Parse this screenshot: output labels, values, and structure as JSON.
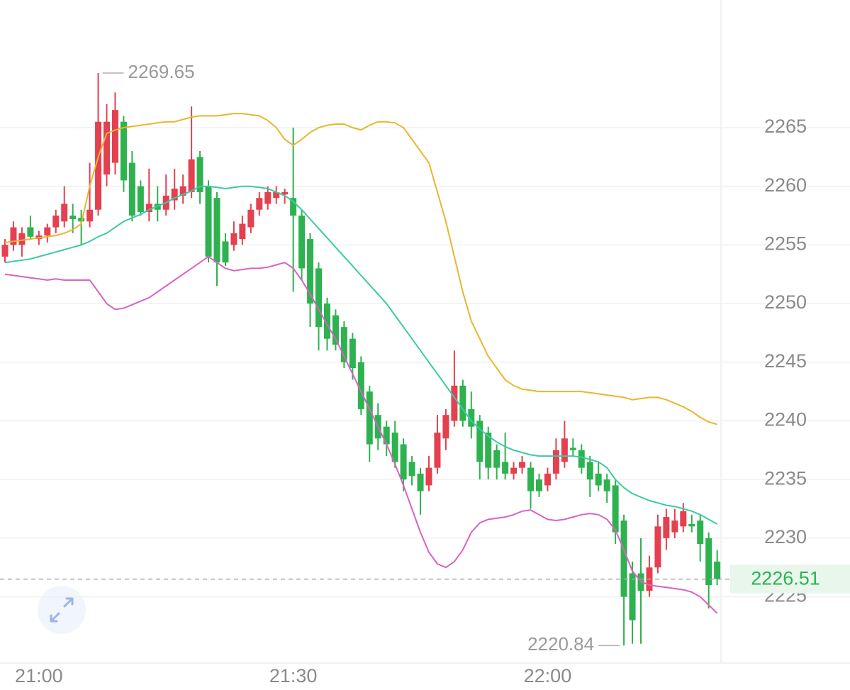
{
  "chart_data": {
    "type": "candlestick",
    "categories": [
      null,
      null,
      null,
      null,
      "21:00",
      null,
      null,
      null,
      null,
      null,
      null,
      null,
      null,
      null,
      null,
      null,
      null,
      null,
      null,
      null,
      null,
      null,
      null,
      null,
      null,
      null,
      null,
      null,
      null,
      null,
      null,
      null,
      null,
      null,
      "21:30",
      null,
      null,
      null,
      null,
      null,
      null,
      null,
      null,
      null,
      null,
      null,
      null,
      null,
      null,
      null,
      null,
      null,
      null,
      null,
      null,
      null,
      null,
      null,
      null,
      null,
      null,
      null,
      null,
      null,
      "22:00",
      null,
      null,
      null,
      null,
      null,
      null,
      null,
      null,
      null,
      null,
      null,
      null,
      null,
      null,
      null,
      null,
      null,
      null,
      null,
      null
    ],
    "open": [
      2254,
      2255,
      2255,
      2256.5,
      2255.5,
      2255.8,
      2256.5,
      2257,
      2257.5,
      2257.3,
      2257,
      2258,
      2261,
      2262,
      2265.5,
      2262,
      2260,
      2257.8,
      2258.5,
      2258,
      2258.8,
      2259.2,
      2259.5,
      2262.5,
      2260,
      2259,
      2255.3,
      2255,
      2255.5,
      2256.5,
      2258,
      2258.5,
      2259,
      2259.3,
      2259,
      2257.5,
      2255.5,
      2253,
      2250,
      2249,
      2248,
      2247,
      2245,
      2242.5,
      2240.5,
      2239.5,
      2239,
      2238,
      2236.5,
      2235.5,
      2234.5,
      2236,
      2238.5,
      2240,
      2243,
      2241,
      2240,
      2239,
      2237.5,
      2236.5,
      2235.5,
      2236,
      2236,
      2235,
      2234.5,
      2235.5,
      2236.5,
      2237.7,
      2237.5,
      2236.5,
      2235.5,
      2235,
      2234.5,
      2231.5,
      2227,
      2227,
      2225.5,
      2227.5,
      2230,
      2230.5,
      2231,
      2231.2,
      2231.5,
      2230,
      2228
    ],
    "high": [
      2255.5,
      2257,
      2256.5,
      2257.5,
      2256.2,
      2256.8,
      2258,
      2260,
      2258.5,
      2258,
      2262,
      2269.65,
      2267,
      2268,
      2266,
      2263,
      2260.5,
      2261.5,
      2260,
      2261,
      2261.5,
      2261,
      2266.8,
      2263,
      2260.5,
      2259.5,
      2256,
      2257,
      2257.5,
      2258.5,
      2259.5,
      2260,
      2260,
      2259.8,
      2265,
      2258,
      2256,
      2253.5,
      2250.5,
      2249.5,
      2248.5,
      2247.5,
      2245.5,
      2243,
      2241.5,
      2240,
      2240,
      2238.5,
      2237,
      2236,
      2237,
      2240.5,
      2241,
      2246,
      2243.5,
      2242.5,
      2240.5,
      2239.5,
      2238,
      2239,
      2236.5,
      2237,
      2236.5,
      2235.5,
      2236,
      2238.5,
      2240,
      2238.5,
      2238,
      2237,
      2236.5,
      2235.5,
      2235,
      2232,
      2228,
      2230,
      2228.5,
      2232,
      2232.5,
      2232.5,
      2233,
      2232,
      2232,
      2230.5,
      2229
    ],
    "low": [
      2253.5,
      2254.5,
      2254,
      2255.5,
      2255,
      2255.2,
      2256,
      2256.5,
      2256,
      2255,
      2256.5,
      2257.5,
      2260,
      2261,
      2259.5,
      2257,
      2257.5,
      2257,
      2257,
      2257.5,
      2258,
      2258.5,
      2259,
      2258.5,
      2253.5,
      2251.5,
      2253.2,
      2254.5,
      2255,
      2256,
      2257.5,
      2258,
      2258.5,
      2258.5,
      2251,
      2252,
      2248,
      2246,
      2246,
      2246,
      2244.5,
      2243.5,
      2240.5,
      2236.5,
      2237.5,
      2237,
      2236,
      2234,
      2234.5,
      2232,
      2234,
      2235.5,
      2237.5,
      2239.5,
      2239.5,
      2238.5,
      2235,
      2235,
      2235,
      2235,
      2235,
      2235.5,
      2232.5,
      2233.5,
      2234,
      2235,
      2236,
      2237,
      2235.5,
      2233.5,
      2234,
      2233,
      2229.5,
      2220.84,
      2221,
      2221,
      2225,
      2227,
      2229,
      2230,
      2230.5,
      2230.5,
      2228,
      2224,
      2226
    ],
    "close": [
      2255,
      2256.5,
      2256,
      2255.7,
      2255.8,
      2256.5,
      2257.5,
      2258.5,
      2257.2,
      2257,
      2258,
      2265.5,
      2265.5,
      2266.5,
      2260.5,
      2257.5,
      2257.8,
      2258.5,
      2258,
      2259.2,
      2259.8,
      2260,
      2262.3,
      2259.5,
      2254,
      2253.5,
      2253.5,
      2256,
      2256.8,
      2258,
      2259,
      2259.5,
      2259.5,
      2259.5,
      2257.5,
      2253,
      2250,
      2248,
      2247,
      2246.5,
      2245,
      2244.5,
      2241,
      2238,
      2238.5,
      2238,
      2236.5,
      2235,
      2235.3,
      2234,
      2236,
      2239,
      2240.5,
      2243,
      2240,
      2239.5,
      2236.5,
      2236,
      2236,
      2235.5,
      2236,
      2236.5,
      2234,
      2234,
      2235.5,
      2237.5,
      2238.5,
      2237.5,
      2236,
      2235,
      2234.5,
      2234,
      2230.5,
      2225,
      2223,
      2225.5,
      2227.5,
      2231,
      2231.8,
      2231.5,
      2232.3,
      2231,
      2229.5,
      2226,
      2226.51
    ],
    "up_color": "#e5404f",
    "down_color": "#2db24f",
    "series": [
      {
        "color": "#ebb52f",
        "values": [
          2255.2,
          2255.3,
          2255.4,
          2255.5,
          2255.6,
          2255.7,
          2255.8,
          2256,
          2256.3,
          2256.8,
          2260,
          2262.5,
          2264.5,
          2264.8,
          2265,
          2265.1,
          2265.2,
          2265.3,
          2265.4,
          2265.5,
          2265.5,
          2265.7,
          2265.9,
          2266,
          2266,
          2266,
          2266.1,
          2266.2,
          2266.2,
          2266.1,
          2266,
          2265.6,
          2265,
          2264,
          2263.5,
          2264,
          2264.6,
          2265,
          2265.2,
          2265.3,
          2265.3,
          2265,
          2264.8,
          2265.2,
          2265.5,
          2265.5,
          2265.4,
          2265,
          2264,
          2263,
          2262,
          2259.5,
          2257,
          2254,
          2251,
          2248.5,
          2247,
          2245.5,
          2244.5,
          2243.5,
          2243,
          2242.7,
          2242.6,
          2242.5,
          2242.5,
          2242.5,
          2242.5,
          2242.5,
          2242.5,
          2242.4,
          2242.3,
          2242.2,
          2242.1,
          2242,
          2241.8,
          2241.9,
          2242,
          2242,
          2241.8,
          2241.5,
          2241.2,
          2240.8,
          2240.3,
          2239.9,
          2239.7
        ]
      },
      {
        "color": "#3ccaa5",
        "values": [
          2253.5,
          2253.6,
          2253.7,
          2253.8,
          2254,
          2254.2,
          2254.4,
          2254.6,
          2254.8,
          2255,
          2255.3,
          2255.7,
          2256,
          2256.5,
          2257,
          2257.3,
          2257.6,
          2258,
          2258.3,
          2258.6,
          2259,
          2259.3,
          2259.6,
          2260,
          2260,
          2259.9,
          2259.8,
          2259.9,
          2260,
          2260,
          2259.9,
          2259.8,
          2259.5,
          2259.2,
          2258.7,
          2258,
          2257.2,
          2256.4,
          2255.6,
          2254.8,
          2254,
          2253.2,
          2252.4,
          2251.6,
          2250.8,
          2250,
          2249,
          2248,
          2247,
          2246,
          2245,
          2244,
          2243,
          2242,
          2241,
          2240,
          2239.3,
          2238.7,
          2238.2,
          2237.8,
          2237.5,
          2237.3,
          2237.1,
          2237,
          2237,
          2237,
          2237,
          2237,
          2236.9,
          2236.7,
          2236.5,
          2236,
          2235,
          2234.3,
          2233.8,
          2233.5,
          2233.2,
          2233,
          2232.8,
          2232.7,
          2232.5,
          2232.3,
          2232,
          2231.6,
          2231.2
        ]
      },
      {
        "color": "#d763c3",
        "values": [
          2252.5,
          2252.4,
          2252.3,
          2252.2,
          2252.1,
          2252,
          2252.1,
          2252,
          2252,
          2252,
          2252,
          2251,
          2250,
          2249.5,
          2249.6,
          2249.9,
          2250.2,
          2250.5,
          2251,
          2251.5,
          2252,
          2252.5,
          2253,
          2253.5,
          2254,
          2253.5,
          2253,
          2252.8,
          2252.9,
          2253,
          2253,
          2253.1,
          2253.3,
          2253.5,
          2253,
          2252,
          2250.8,
          2249.5,
          2248.2,
          2247,
          2245.5,
          2244,
          2242.5,
          2241,
          2239.5,
          2238,
          2236.3,
          2234.5,
          2232.5,
          2230.5,
          2228.8,
          2227.8,
          2227.5,
          2228,
          2229,
          2230.5,
          2231.3,
          2231.6,
          2231.7,
          2231.8,
          2232,
          2232.3,
          2232.4,
          2232,
          2231.6,
          2231.5,
          2231.6,
          2231.8,
          2232,
          2232.1,
          2232,
          2231.6,
          2230.7,
          2229,
          2227.2,
          2226.3,
          2226,
          2225.9,
          2225.8,
          2225.7,
          2225.6,
          2225.4,
          2225,
          2224.3,
          2223.6
        ]
      }
    ],
    "ylim": [
      2219.35,
      2275.88
    ],
    "yticks": [
      2225,
      2230,
      2235,
      2240,
      2245,
      2250,
      2255,
      2260,
      2265
    ],
    "grid": true,
    "last_price_color": "#2db24f"
  }
}
